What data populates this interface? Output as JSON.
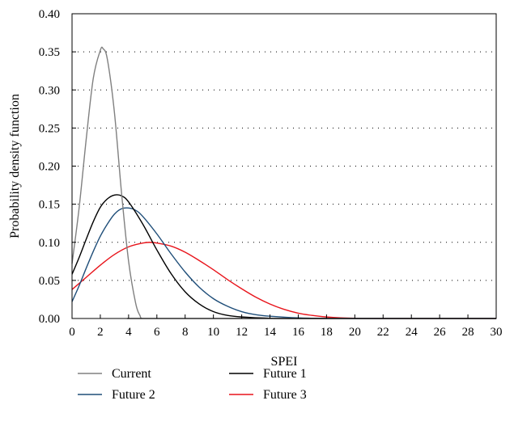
{
  "chart_data": {
    "type": "line",
    "xlabel": "SPEI",
    "ylabel": "Probability density function",
    "xlim": [
      0,
      30
    ],
    "ylim": [
      0,
      0.4
    ],
    "x_ticks": [
      "0",
      "2",
      "4",
      "6",
      "8",
      "10",
      "12",
      "14",
      "16",
      "18",
      "20",
      "22",
      "24",
      "26",
      "28",
      "30"
    ],
    "y_ticks": [
      "0.00",
      "0.05",
      "0.10",
      "0.15",
      "0.20",
      "0.25",
      "0.30",
      "0.35",
      "0.40"
    ],
    "grid": "horizontal-dotted",
    "legend_position": "bottom",
    "series": [
      {
        "name": "Current",
        "color": "#808080",
        "points": [
          [
            0,
            0.072
          ],
          [
            0.5,
            0.145
          ],
          [
            1,
            0.235
          ],
          [
            1.5,
            0.315
          ],
          [
            2,
            0.352
          ],
          [
            2.2,
            0.354
          ],
          [
            2.5,
            0.34
          ],
          [
            3,
            0.27
          ],
          [
            3.5,
            0.165
          ],
          [
            4,
            0.075
          ],
          [
            4.5,
            0.02
          ],
          [
            4.8,
            0.004
          ],
          [
            5,
            0.0
          ],
          [
            6,
            0.0
          ],
          [
            30,
            0.0
          ]
        ]
      },
      {
        "name": "Future 1",
        "color": "#000000",
        "points": [
          [
            0,
            0.058
          ],
          [
            0.5,
            0.08
          ],
          [
            1,
            0.104
          ],
          [
            1.5,
            0.127
          ],
          [
            2,
            0.146
          ],
          [
            2.5,
            0.157
          ],
          [
            3,
            0.162
          ],
          [
            3.5,
            0.161
          ],
          [
            4,
            0.153
          ],
          [
            5,
            0.124
          ],
          [
            6,
            0.09
          ],
          [
            7,
            0.059
          ],
          [
            8,
            0.035
          ],
          [
            9,
            0.019
          ],
          [
            10,
            0.009
          ],
          [
            11,
            0.004
          ],
          [
            12,
            0.002
          ],
          [
            14,
            0.0003
          ],
          [
            16,
            0.0
          ],
          [
            30,
            0.0
          ]
        ]
      },
      {
        "name": "Future 2",
        "color": "#1F4E79",
        "points": [
          [
            0,
            0.022
          ],
          [
            0.5,
            0.043
          ],
          [
            1,
            0.066
          ],
          [
            1.5,
            0.088
          ],
          [
            2,
            0.108
          ],
          [
            2.5,
            0.124
          ],
          [
            3,
            0.137
          ],
          [
            3.5,
            0.144
          ],
          [
            4,
            0.145
          ],
          [
            4.5,
            0.142
          ],
          [
            5,
            0.134
          ],
          [
            6,
            0.111
          ],
          [
            7,
            0.085
          ],
          [
            8,
            0.061
          ],
          [
            9,
            0.041
          ],
          [
            10,
            0.026
          ],
          [
            11,
            0.016
          ],
          [
            12,
            0.009
          ],
          [
            13,
            0.005
          ],
          [
            14,
            0.003
          ],
          [
            16,
            0.0008
          ],
          [
            18,
            0.0001
          ],
          [
            20,
            0.0
          ],
          [
            30,
            0.0
          ]
        ]
      },
      {
        "name": "Future 3",
        "color": "#E8141B",
        "points": [
          [
            0,
            0.038
          ],
          [
            1,
            0.054
          ],
          [
            2,
            0.07
          ],
          [
            3,
            0.084
          ],
          [
            4,
            0.094
          ],
          [
            5,
            0.099
          ],
          [
            5.5,
            0.1
          ],
          [
            6,
            0.099
          ],
          [
            7,
            0.095
          ],
          [
            8,
            0.087
          ],
          [
            9,
            0.076
          ],
          [
            10,
            0.064
          ],
          [
            11,
            0.051
          ],
          [
            12,
            0.039
          ],
          [
            13,
            0.028
          ],
          [
            14,
            0.019
          ],
          [
            15,
            0.012
          ],
          [
            16,
            0.007
          ],
          [
            17,
            0.004
          ],
          [
            18,
            0.002
          ],
          [
            19,
            0.0008
          ],
          [
            20,
            0.0003
          ],
          [
            22,
            0.0
          ],
          [
            30,
            0.0
          ]
        ]
      }
    ]
  }
}
